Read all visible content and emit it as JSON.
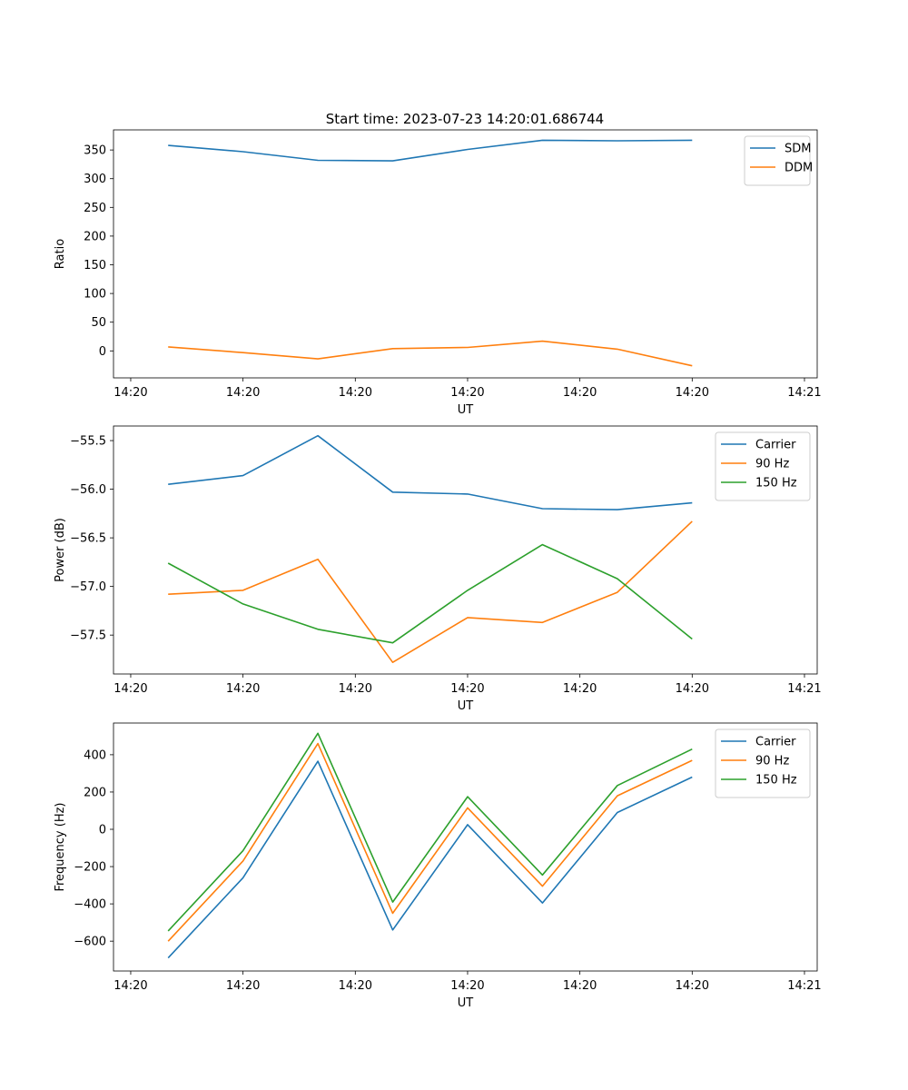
{
  "title": "Start time: 2023-07-23 14:20:01.686744",
  "colors": {
    "c0": "#1f77b4",
    "c1": "#ff7f0e",
    "c2": "#2ca02c"
  },
  "chart_data": [
    {
      "type": "line",
      "title": "Start time: 2023-07-23 14:20:01.686744",
      "xlabel": "UT",
      "ylabel": "Ratio",
      "x": [
        0,
        1,
        2,
        3,
        4,
        5,
        6,
        7
      ],
      "xlim": [
        -0.73,
        8.67
      ],
      "ylim": [
        -47,
        385
      ],
      "xticks": [
        {
          "pos": -0.5,
          "label": "14:20"
        },
        {
          "pos": 1.0,
          "label": "14:20"
        },
        {
          "pos": 2.5,
          "label": "14:20"
        },
        {
          "pos": 4.0,
          "label": "14:20"
        },
        {
          "pos": 5.5,
          "label": "14:20"
        },
        {
          "pos": 7.0,
          "label": "14:20"
        },
        {
          "pos": 8.5,
          "label": "14:21"
        }
      ],
      "yticks": [
        {
          "value": 0,
          "label": "0"
        },
        {
          "value": 50,
          "label": "50"
        },
        {
          "value": 100,
          "label": "100"
        },
        {
          "value": 150,
          "label": "150"
        },
        {
          "value": 200,
          "label": "200"
        },
        {
          "value": 250,
          "label": "250"
        },
        {
          "value": 300,
          "label": "300"
        },
        {
          "value": 350,
          "label": "350"
        }
      ],
      "legend_loc": "top-right",
      "series": [
        {
          "name": "SDM",
          "color": "#1f77b4",
          "values": [
            358,
            347,
            332,
            331,
            351,
            367,
            366,
            367
          ]
        },
        {
          "name": "DDM",
          "color": "#ff7f0e",
          "values": [
            7,
            -3,
            -14,
            4,
            6,
            17,
            3,
            -26
          ]
        }
      ]
    },
    {
      "type": "line",
      "title": "",
      "xlabel": "UT",
      "ylabel": "Power (dB)",
      "x": [
        0,
        1,
        2,
        3,
        4,
        5,
        6,
        7
      ],
      "xlim": [
        -0.73,
        8.67
      ],
      "ylim": [
        -57.9,
        -55.35
      ],
      "xticks": [
        {
          "pos": -0.5,
          "label": "14:20"
        },
        {
          "pos": 1.0,
          "label": "14:20"
        },
        {
          "pos": 2.5,
          "label": "14:20"
        },
        {
          "pos": 4.0,
          "label": "14:20"
        },
        {
          "pos": 5.5,
          "label": "14:20"
        },
        {
          "pos": 7.0,
          "label": "14:20"
        },
        {
          "pos": 8.5,
          "label": "14:21"
        }
      ],
      "yticks": [
        {
          "value": -57.5,
          "label": "−57.5"
        },
        {
          "value": -57.0,
          "label": "−57.0"
        },
        {
          "value": -56.5,
          "label": "−56.5"
        },
        {
          "value": -56.0,
          "label": "−56.0"
        },
        {
          "value": -55.5,
          "label": "−55.5"
        }
      ],
      "legend_loc": "top-right",
      "series": [
        {
          "name": "Carrier",
          "color": "#1f77b4",
          "values": [
            -55.95,
            -55.86,
            -55.45,
            -56.03,
            -56.05,
            -56.2,
            -56.21,
            -56.14
          ]
        },
        {
          "name": "90 Hz",
          "color": "#ff7f0e",
          "values": [
            -57.08,
            -57.04,
            -56.72,
            -57.78,
            -57.32,
            -57.37,
            -57.06,
            -56.33
          ]
        },
        {
          "name": "150 Hz",
          "color": "#2ca02c",
          "values": [
            -56.76,
            -57.18,
            -57.44,
            -57.58,
            -57.04,
            -56.57,
            -56.92,
            -57.54
          ]
        }
      ]
    },
    {
      "type": "line",
      "title": "",
      "xlabel": "UT",
      "ylabel": "Frequency (Hz)",
      "x": [
        0,
        1,
        2,
        3,
        4,
        5,
        6,
        7
      ],
      "xlim": [
        -0.73,
        8.67
      ],
      "ylim": [
        -760,
        570
      ],
      "xticks": [
        {
          "pos": -0.5,
          "label": "14:20"
        },
        {
          "pos": 1.0,
          "label": "14:20"
        },
        {
          "pos": 2.5,
          "label": "14:20"
        },
        {
          "pos": 4.0,
          "label": "14:20"
        },
        {
          "pos": 5.5,
          "label": "14:20"
        },
        {
          "pos": 7.0,
          "label": "14:20"
        },
        {
          "pos": 8.5,
          "label": "14:21"
        }
      ],
      "yticks": [
        {
          "value": -600,
          "label": "−600"
        },
        {
          "value": -400,
          "label": "−400"
        },
        {
          "value": -200,
          "label": "−200"
        },
        {
          "value": 0,
          "label": "0"
        },
        {
          "value": 200,
          "label": "200"
        },
        {
          "value": 400,
          "label": "400"
        }
      ],
      "legend_loc": "top-right",
      "series": [
        {
          "name": "Carrier",
          "color": "#1f77b4",
          "values": [
            -690,
            -260,
            365,
            -540,
            25,
            -395,
            90,
            280
          ]
        },
        {
          "name": "90 Hz",
          "color": "#ff7f0e",
          "values": [
            -600,
            -170,
            460,
            -450,
            115,
            -305,
            180,
            370
          ]
        },
        {
          "name": "150 Hz",
          "color": "#2ca02c",
          "values": [
            -545,
            -115,
            515,
            -390,
            175,
            -245,
            235,
            430
          ]
        }
      ]
    }
  ]
}
